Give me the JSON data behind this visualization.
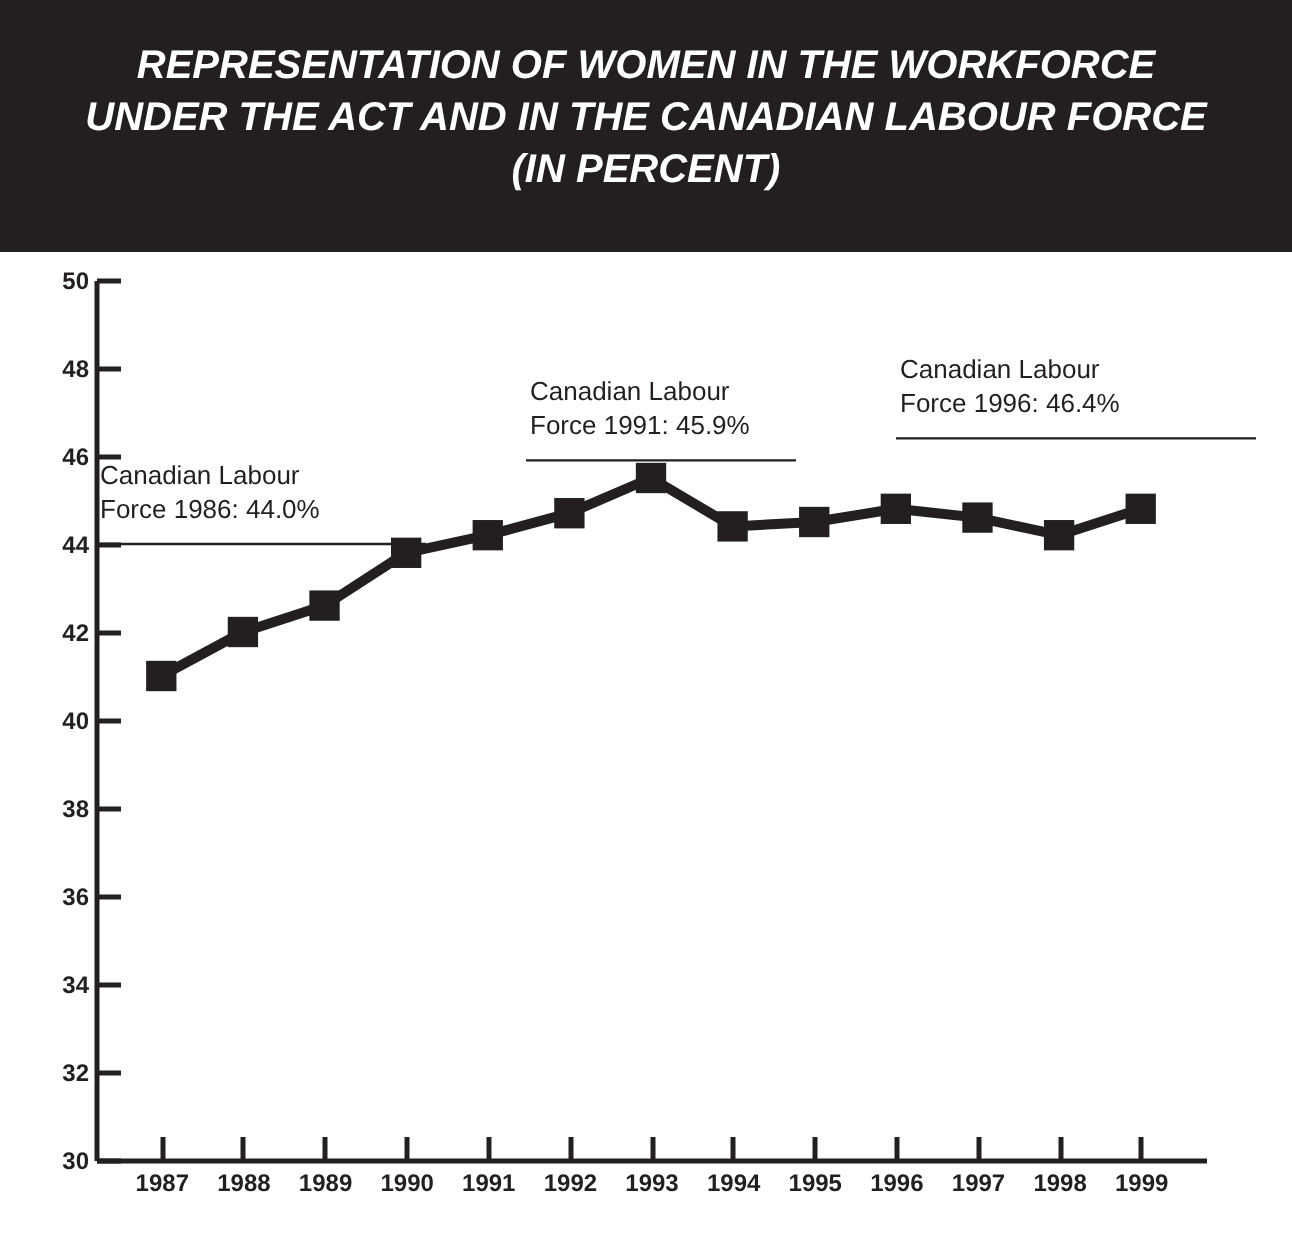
{
  "chart_data": {
    "type": "line",
    "title": "REPRESENTATION OF WOMEN IN THE WORKFORCE UNDER THE ACT AND IN THE CANADIAN LABOUR FORCE (IN PERCENT)",
    "categories": [
      "1987",
      "1988",
      "1989",
      "1990",
      "1991",
      "1992",
      "1993",
      "1994",
      "1995",
      "1996",
      "1997",
      "1998",
      "1999"
    ],
    "series": [
      {
        "color": "#231f20",
        "values": [
          41.0,
          42.0,
          42.6,
          43.8,
          44.2,
          44.7,
          45.5,
          44.4,
          44.5,
          44.8,
          44.6,
          44.2,
          44.8
        ]
      }
    ],
    "ylim": [
      30,
      50
    ],
    "yticks": [
      30,
      32,
      34,
      36,
      38,
      40,
      42,
      44,
      46,
      48,
      50
    ],
    "marker": "square",
    "line_style": "solid",
    "grid": false,
    "ref_lines": [
      {
        "axis": "y",
        "value": 44.0,
        "label": "Canadian Labour\nForce 1986: 44.0%",
        "color": "#231f20"
      },
      {
        "axis": "y",
        "value": 45.9,
        "label": "Canadian Labour\nForce 1991: 45.9%",
        "color": "#231f20"
      },
      {
        "axis": "y",
        "value": 46.4,
        "label": "Canadian Labour\nForce 1996: 46.4%",
        "color": "#231f20"
      }
    ]
  }
}
